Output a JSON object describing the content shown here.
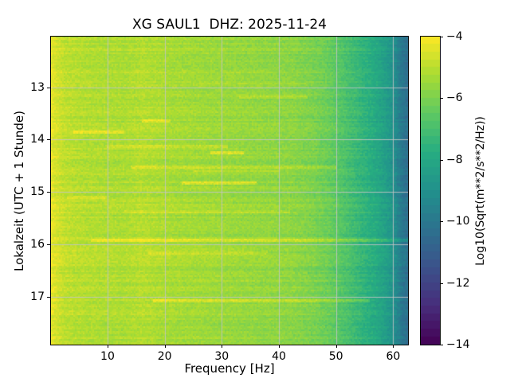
{
  "figure": {
    "background": "#ffffff"
  },
  "chart_data": {
    "type": "heatmap",
    "title": "XG SAUL1  DHZ: 2025-11-24",
    "xlabel": "Frequency [Hz]",
    "ylabel": "Lokalzeit (UTC + 1 Stunde)",
    "colorbar_label": "Log10(Sqrt(m**2/s**2/Hz))",
    "x_axis": {
      "min": 0.1,
      "max": 62.6,
      "ticks": [
        10,
        20,
        30,
        40,
        50,
        60
      ],
      "tick_labels": [
        "10",
        "20",
        "30",
        "40",
        "50",
        "60"
      ]
    },
    "y_axis": {
      "min": 12.03,
      "max": 17.92,
      "ticks": [
        13,
        14,
        15,
        16,
        17
      ],
      "tick_labels": [
        "13",
        "14",
        "15",
        "16",
        "17"
      ]
    },
    "colorbar": {
      "min": -14,
      "max": -4,
      "ticks": [
        -4,
        -6,
        -8,
        -10,
        -12,
        -14
      ],
      "tick_labels": [
        "−4",
        "−6",
        "−8",
        "−10",
        "−12",
        "−14"
      ],
      "levels": 40
    },
    "colormap": {
      "name": "viridis",
      "stops": [
        [
          0.0,
          "#440154"
        ],
        [
          0.125,
          "#472d7b"
        ],
        [
          0.25,
          "#3b528b"
        ],
        [
          0.375,
          "#2c728e"
        ],
        [
          0.5,
          "#21918c"
        ],
        [
          0.625,
          "#27ad81"
        ],
        [
          0.75,
          "#5ec962"
        ],
        [
          0.875,
          "#aadc32"
        ],
        [
          1.0,
          "#fde725"
        ]
      ]
    },
    "grid": {
      "show": true,
      "color": "#c6c6c6",
      "alpha": 0.85
    },
    "spine_color": "#000000",
    "text_color": "#000000",
    "spectrum_profile": [
      [
        0.1,
        -4.3
      ],
      [
        1.0,
        -4.55
      ],
      [
        2.5,
        -4.9
      ],
      [
        5,
        -5.05
      ],
      [
        9,
        -5.15
      ],
      [
        13,
        -5.2
      ],
      [
        16,
        -5.05
      ],
      [
        18,
        -5.15
      ],
      [
        22,
        -5.3
      ],
      [
        27,
        -5.4
      ],
      [
        32,
        -5.5
      ],
      [
        37,
        -5.6
      ],
      [
        42,
        -5.7
      ],
      [
        46,
        -5.95
      ],
      [
        49,
        -6.3
      ],
      [
        51,
        -6.7
      ],
      [
        53,
        -7.1
      ],
      [
        55,
        -7.5
      ],
      [
        57,
        -7.9
      ],
      [
        58.5,
        -8.3
      ],
      [
        59.8,
        -8.8
      ],
      [
        60.8,
        -9.5
      ],
      [
        61.6,
        -10.0
      ],
      [
        62.6,
        -10.4
      ]
    ],
    "events": [
      {
        "time": 12.93,
        "freq": [
          25,
          45
        ],
        "boost": 0.35,
        "half_width": 0.02
      },
      {
        "time": 13.2,
        "freq": [
          33,
          45
        ],
        "boost": 0.45,
        "half_width": 0.03
      },
      {
        "time": 13.64,
        "freq": [
          16,
          21
        ],
        "boost": 0.85,
        "half_width": 0.025
      },
      {
        "time": 13.85,
        "freq": [
          4,
          13
        ],
        "boost": 0.8,
        "half_width": 0.022
      },
      {
        "time": 14.12,
        "freq": [
          10,
          31
        ],
        "boost": 0.55,
        "half_width": 0.03
      },
      {
        "time": 14.25,
        "freq": [
          28,
          34
        ],
        "boost": 1.0,
        "half_width": 0.025
      },
      {
        "time": 14.54,
        "freq": [
          14,
          50
        ],
        "boost": 0.65,
        "half_width": 0.03
      },
      {
        "time": 14.6,
        "freq": [
          25,
          40
        ],
        "boost": 0.5,
        "half_width": 0.025
      },
      {
        "time": 14.82,
        "freq": [
          23,
          36
        ],
        "boost": 0.95,
        "half_width": 0.028
      },
      {
        "time": 15.1,
        "freq": [
          3,
          10
        ],
        "boost": 0.5,
        "half_width": 0.02
      },
      {
        "time": 15.37,
        "freq": [
          13,
          42
        ],
        "boost": 0.4,
        "half_width": 0.035
      },
      {
        "time": 15.92,
        "freq": [
          7,
          62.6
        ],
        "boost": 0.85,
        "half_width": 0.035
      },
      {
        "time": 16.18,
        "freq": [
          17,
          38
        ],
        "boost": 0.55,
        "half_width": 0.028
      },
      {
        "time": 16.55,
        "freq": [
          20,
          45
        ],
        "boost": 0.3,
        "half_width": 0.02
      },
      {
        "time": 17.08,
        "freq": [
          18,
          56
        ],
        "boost": 0.75,
        "half_width": 0.03
      }
    ],
    "noise": {
      "seed": 1234,
      "cell_amplitude": 0.55,
      "row_amplitude": 0.22,
      "quantize": 0.25
    }
  }
}
